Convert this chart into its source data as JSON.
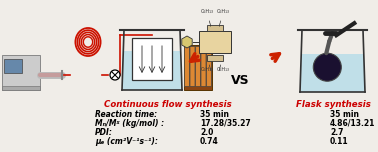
{
  "background_color": "#f0ede8",
  "title_continuous": "Continuous flow synthesis",
  "title_flask": "Flask synthesis",
  "title_color": "#cc0000",
  "vs_text": "VS",
  "labels_line1": "Reaction time:",
  "labels_line2": "Mₙ/Mᵡ (kg/mol) :",
  "labels_line3": "PDI:",
  "labels_line4": "μₑ (cm²V⁻¹s⁻¹):",
  "vals_cont": [
    "35 min",
    "17.28/35.27",
    "2.0",
    "0.74"
  ],
  "vals_flask": [
    "35 min",
    "4.86/13.21",
    "2.7",
    "0.11"
  ],
  "arrow_color": "#cc2200",
  "coil_color": "#cc1100",
  "tube_color": "#cc4400",
  "water_color": "#b8dde8",
  "water_dark": "#8ec8d8"
}
